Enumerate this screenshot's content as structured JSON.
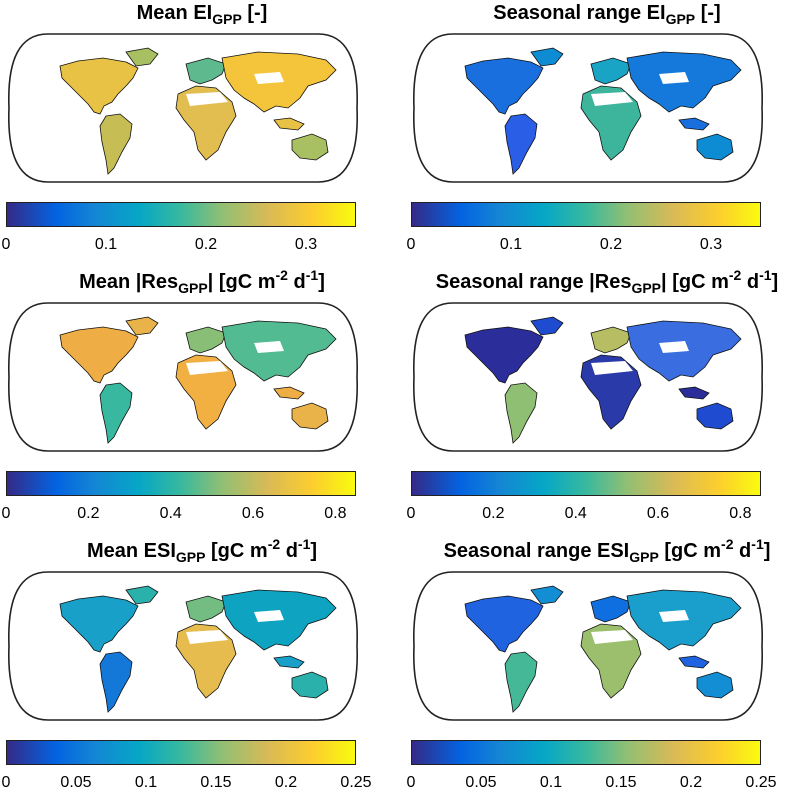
{
  "panels": [
    {
      "title": {
        "main": "Mean EI",
        "sub": "GPP",
        "rest": " [-]",
        "unit_main": "",
        "unit_exp1": "",
        "unit_mid": "",
        "unit_exp2": "",
        "unit_end": ""
      },
      "colorbar": {
        "min": 0,
        "max": 0.35,
        "ticks": [
          "0",
          "0.1",
          "0.2",
          "0.3"
        ],
        "tick_values": [
          0,
          0.1,
          0.2,
          0.3
        ]
      },
      "palette": [
        "#e8c244",
        "#a8bf62",
        "#c7bd55",
        "#5fb98f",
        "#e2bd50",
        "#f4c53a"
      ]
    },
    {
      "title": {
        "main": "Seasonal range EI",
        "sub": "GPP",
        "rest": " [-]",
        "unit_main": "",
        "unit_exp1": "",
        "unit_mid": "",
        "unit_exp2": "",
        "unit_end": ""
      },
      "colorbar": {
        "min": 0,
        "max": 0.35,
        "ticks": [
          "0",
          "0.1",
          "0.2",
          "0.3"
        ],
        "tick_values": [
          0,
          0.1,
          0.2,
          0.3
        ]
      },
      "palette": [
        "#1a6fdf",
        "#0d8bd3",
        "#2a5ee6",
        "#19a3c4",
        "#3db59d",
        "#1479db"
      ]
    },
    {
      "title": {
        "main": "Mean |Res",
        "sub": "GPP",
        "rest": "| ",
        "unit_main": "[gC m",
        "unit_exp1": "-2",
        "unit_mid": " d",
        "unit_exp2": "-1",
        "unit_end": "]"
      },
      "colorbar": {
        "min": 0,
        "max": 0.85,
        "ticks": [
          "0",
          "0.2",
          "0.4",
          "0.6",
          "0.8"
        ],
        "tick_values": [
          0,
          0.2,
          0.4,
          0.6,
          0.8
        ]
      },
      "palette": [
        "#efae45",
        "#e9b34a",
        "#37b89f",
        "#88be76",
        "#f2b042",
        "#52bb92"
      ]
    },
    {
      "title": {
        "main": "Seasonal range |Res",
        "sub": "GPP",
        "rest": "| ",
        "unit_main": "[gC m",
        "unit_exp1": "-2",
        "unit_mid": " d",
        "unit_exp2": "-1",
        "unit_end": "]"
      },
      "colorbar": {
        "min": 0,
        "max": 0.85,
        "ticks": [
          "0",
          "0.2",
          "0.4",
          "0.6",
          "0.8"
        ],
        "tick_values": [
          0,
          0.2,
          0.4,
          0.6,
          0.8
        ]
      },
      "palette": [
        "#2b2e9a",
        "#1f4bd0",
        "#8ebf72",
        "#b6bd62",
        "#2a3aa8",
        "#3a6ee0"
      ]
    },
    {
      "title": {
        "main": "Mean ESI",
        "sub": "GPP",
        "rest": " ",
        "unit_main": "[gC m",
        "unit_exp1": "-2",
        "unit_mid": " d",
        "unit_exp2": "-1",
        "unit_end": "]"
      },
      "colorbar": {
        "min": 0,
        "max": 0.25,
        "ticks": [
          "0",
          "0.05",
          "0.1",
          "0.15",
          "0.2",
          "0.25"
        ],
        "tick_values": [
          0,
          0.05,
          0.1,
          0.15,
          0.2,
          0.25
        ]
      },
      "palette": [
        "#18a0c8",
        "#2bb1ab",
        "#1478d8",
        "#73bd83",
        "#e6bc4e",
        "#0fa3c2"
      ]
    },
    {
      "title": {
        "main": "Seasonal range ESI",
        "sub": "GPP",
        "rest": " ",
        "unit_main": "[gC m",
        "unit_exp1": "-2",
        "unit_mid": " d",
        "unit_exp2": "-1",
        "unit_end": "]"
      },
      "colorbar": {
        "min": 0,
        "max": 0.25,
        "ticks": [
          "0",
          "0.05",
          "0.1",
          "0.15",
          "0.2",
          "0.25"
        ],
        "tick_values": [
          0,
          0.05,
          0.1,
          0.15,
          0.2,
          0.25
        ]
      },
      "palette": [
        "#1f63e0",
        "#138dd3",
        "#44b897",
        "#0f6fe0",
        "#9bbf6c",
        "#1a9ecb"
      ]
    }
  ]
}
